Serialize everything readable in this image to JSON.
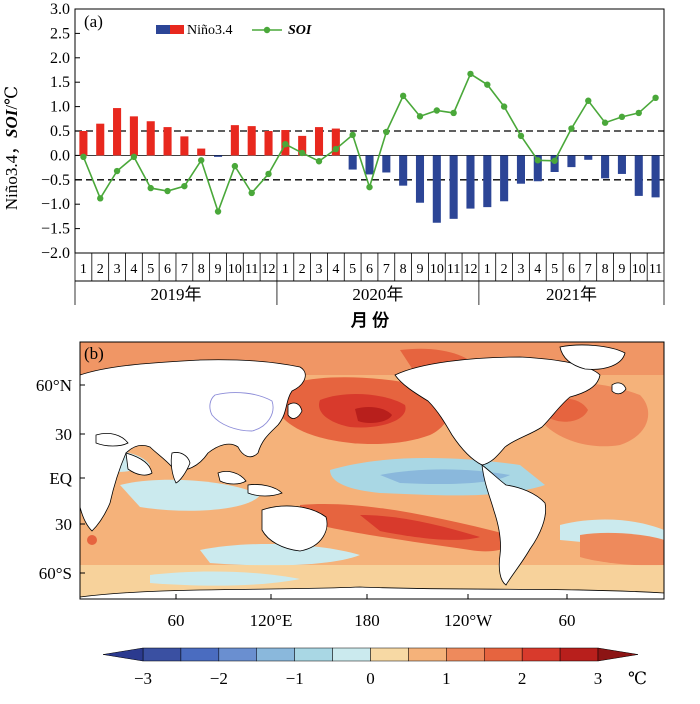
{
  "chart_data": [
    {
      "panel_label": "(a)",
      "type": "bar+line",
      "ylabel": "Niño3.4, SOI/℃",
      "ylabel_parts": {
        "a": "Niño3.4，",
        "b": "SOI",
        "c": "/℃"
      },
      "xlabel": "月 份",
      "ylim": [
        -2.0,
        3.0
      ],
      "y_ticks": [
        "3.0",
        "2.5",
        "2.0",
        "1.5",
        "1.0",
        "0.5",
        "0.0",
        "−0.5",
        "−1.0",
        "−1.5",
        "−2.0"
      ],
      "months": [
        "1",
        "2",
        "3",
        "4",
        "5",
        "6",
        "7",
        "8",
        "9",
        "10",
        "11",
        "12",
        "1",
        "2",
        "3",
        "4",
        "5",
        "6",
        "7",
        "8",
        "9",
        "10",
        "11",
        "12",
        "1",
        "2",
        "3",
        "4",
        "5",
        "6",
        "7",
        "8",
        "9",
        "10",
        "11"
      ],
      "years": [
        "2019年",
        "2020年",
        "2021年"
      ],
      "legend": {
        "nino": "Niño3.4",
        "soi": "SOI"
      },
      "reference_lines": [
        0.5,
        -0.5
      ],
      "colors": {
        "positive": "#e8281e",
        "negative": "#2c4596",
        "soi_line": "#4aa83a"
      },
      "series": [
        {
          "name": "Niño3.4",
          "kind": "bar",
          "values": [
            0.5,
            0.65,
            0.97,
            0.8,
            0.7,
            0.58,
            0.39,
            0.14,
            -0.03,
            0.62,
            0.6,
            0.5,
            0.52,
            0.4,
            0.58,
            0.55,
            -0.29,
            -0.39,
            -0.35,
            -0.62,
            -0.97,
            -1.38,
            -1.3,
            -1.09,
            -1.06,
            -0.94,
            -0.58,
            -0.53,
            -0.34,
            -0.24,
            -0.09,
            -0.47,
            -0.38,
            -0.83,
            -0.86
          ]
        },
        {
          "name": "SOI",
          "kind": "line",
          "values": [
            -0.03,
            -0.88,
            -0.32,
            -0.03,
            -0.67,
            -0.73,
            -0.63,
            -0.1,
            -1.15,
            -0.22,
            -0.77,
            -0.38,
            0.23,
            0.05,
            -0.12,
            0.13,
            0.42,
            -0.65,
            0.48,
            1.22,
            0.8,
            0.92,
            0.87,
            1.67,
            1.45,
            1.0,
            0.4,
            -0.1,
            -0.11,
            0.55,
            1.12,
            0.67,
            0.79,
            0.87,
            1.18
          ]
        }
      ]
    },
    {
      "panel_label": "(b)",
      "type": "heatmap",
      "y_tick_labels": [
        "60°N",
        "30",
        "EQ",
        "30",
        "60°S"
      ],
      "x_tick_labels": [
        "60",
        "120°E",
        "180",
        "120°W",
        "60"
      ],
      "colorbar": {
        "unit": "℃",
        "tick_labels": [
          "−3",
          "−2",
          "−1",
          "0",
          "1",
          "2",
          "3"
        ],
        "levels": [
          -3,
          -2.5,
          -2,
          -1.5,
          -1,
          -0.5,
          0,
          0.5,
          1,
          1.5,
          2,
          2.5,
          3
        ],
        "colors": [
          "#3a50a2",
          "#4a6cc0",
          "#6a8fd0",
          "#8ab8dc",
          "#a9d7e4",
          "#cbeaee",
          "#f7d9a4",
          "#f5b27a",
          "#ee8a5c",
          "#e6643f",
          "#d83a2c",
          "#b81f1c"
        ]
      }
    }
  ]
}
